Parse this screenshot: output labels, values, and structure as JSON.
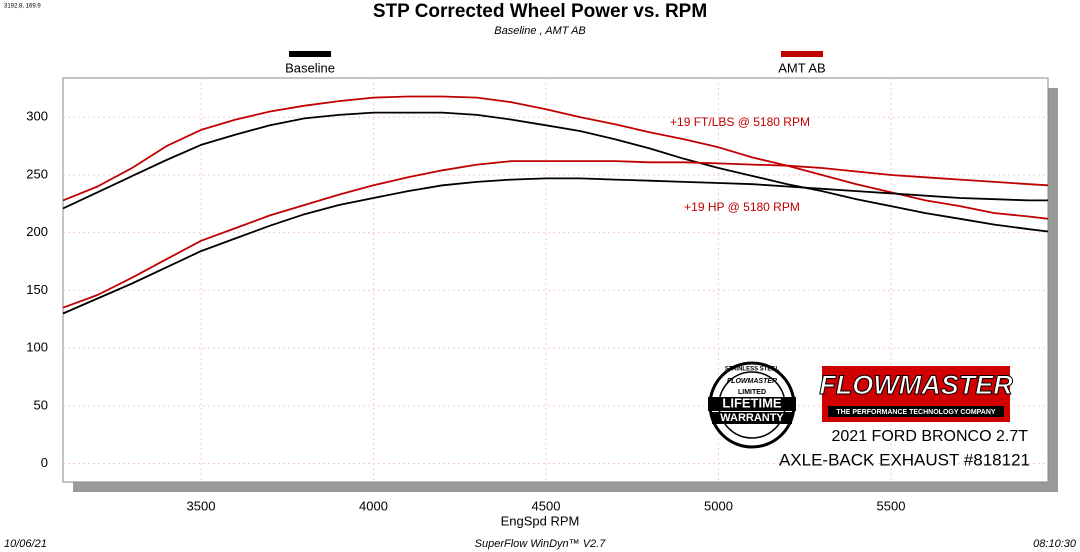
{
  "chart_data": {
    "type": "line",
    "title": "STP Corrected Wheel Power vs. RPM",
    "subtitle": "Baseline , AMT AB",
    "x_label": "EngSpd  RPM",
    "corner_note": "3192.8, 169.9",
    "footer": {
      "date": "10/06/21",
      "software": "SuperFlow WinDyn™  V2.7",
      "time": "08:10:30"
    },
    "x": [
      3100,
      3200,
      3300,
      3400,
      3500,
      3600,
      3700,
      3800,
      3900,
      4000,
      4100,
      4200,
      4300,
      4400,
      4500,
      4600,
      4700,
      4800,
      4900,
      5000,
      5100,
      5200,
      5300,
      5400,
      5500,
      5600,
      5700,
      5800,
      5900,
      5955
    ],
    "series": [
      {
        "name": "Baseline",
        "color": "#000000",
        "values": [
          221,
          235,
          249,
          263,
          276,
          285,
          293,
          299,
          302,
          304,
          304,
          304,
          302,
          298,
          293,
          288,
          281,
          273,
          264,
          256,
          249,
          242,
          236,
          229,
          223,
          217,
          212,
          207,
          203,
          201
        ]
      },
      {
        "name": "AMT AB",
        "color": "#c00000",
        "values": [
          228,
          240,
          256,
          275,
          289,
          298,
          305,
          310,
          314,
          317,
          318,
          318,
          317,
          313,
          307,
          300,
          294,
          287,
          281,
          274,
          265,
          258,
          250,
          242,
          235,
          228,
          223,
          217,
          214,
          212
        ]
      },
      {
        "color": "#000000",
        "values": [
          130,
          143,
          156,
          170,
          184,
          195,
          206,
          216,
          224,
          230,
          236,
          241,
          244,
          246,
          247,
          247,
          246,
          245,
          244,
          243,
          242,
          240,
          238,
          236,
          234,
          232,
          230,
          229,
          228,
          228
        ]
      },
      {
        "color": "#c00000",
        "values": [
          135,
          146,
          161,
          177,
          193,
          204,
          215,
          224,
          233,
          241,
          248,
          254,
          259,
          262,
          262,
          262,
          262,
          261,
          261,
          260,
          259,
          258,
          256,
          253,
          250,
          248,
          246,
          244,
          242,
          241
        ]
      }
    ],
    "xlim": [
      3100,
      5955
    ],
    "ylim": [
      -16,
      334
    ],
    "xticks": [
      3500,
      4000,
      4500,
      5000,
      5500
    ],
    "yticks": [
      0,
      50,
      100,
      150,
      200,
      250,
      300
    ],
    "grid": true,
    "annotations": [
      {
        "text": "+19 FT/LBS @ 5180 RPM",
        "color": "#c00000"
      },
      {
        "text": "+19 HP @ 5180 RPM",
        "color": "#c00000"
      }
    ],
    "branding": {
      "badge": [
        "STAINLESS STEEL",
        "FLOWMASTER",
        "LIMITED",
        "LIFETIME",
        "WARRANTY"
      ],
      "logo": "FLOWMASTER",
      "tagline": "THE PERFORMANCE TECHNOLOGY COMPANY",
      "vehicle": "2021 FORD BRONCO 2.7T",
      "product": "AXLE-BACK EXHAUST #818121"
    }
  }
}
